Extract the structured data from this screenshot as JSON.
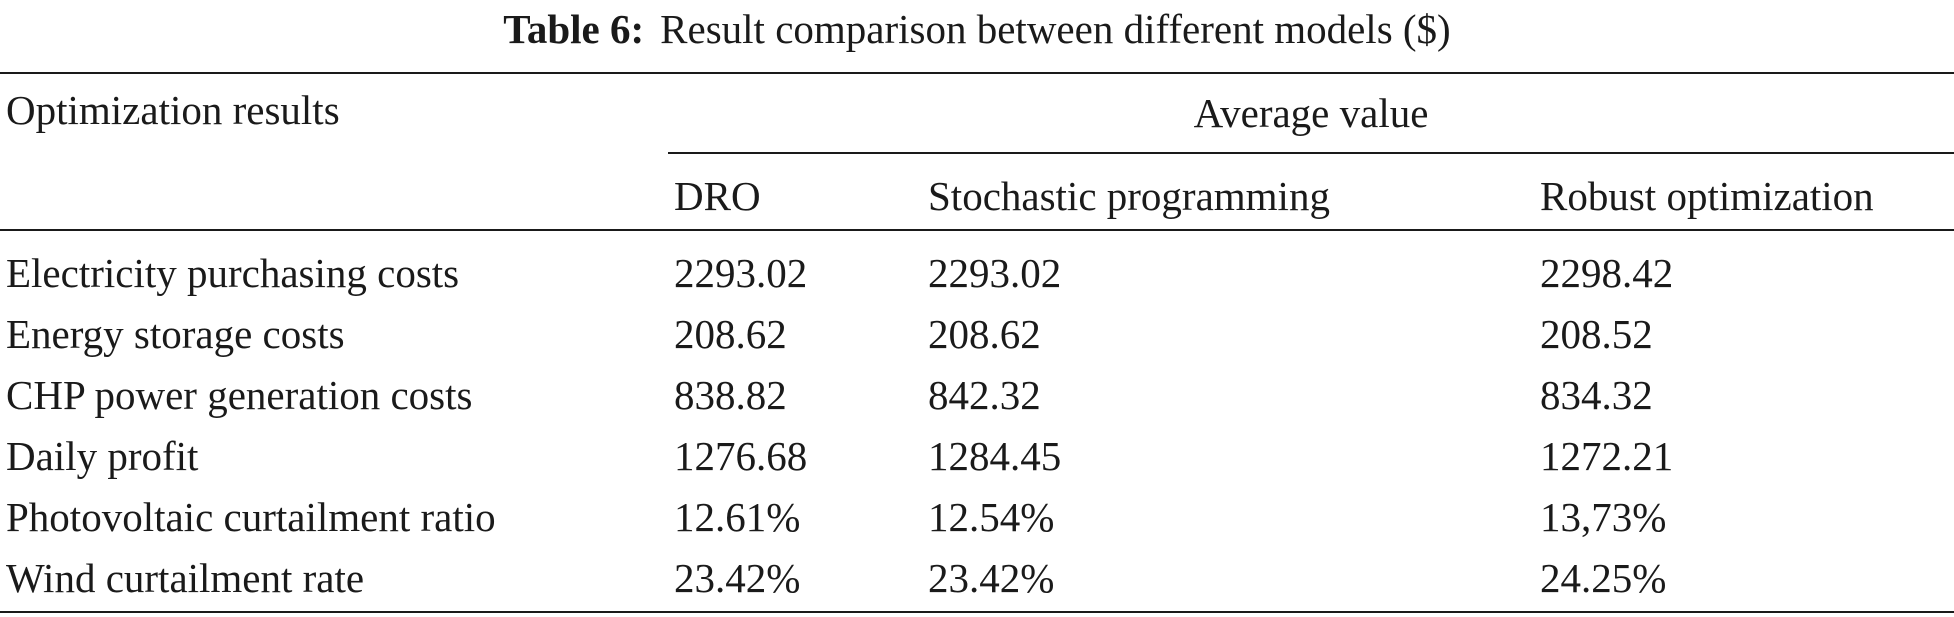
{
  "caption": {
    "label": "Table 6:",
    "text": "Result comparison between different models ($)"
  },
  "header": {
    "row_label": "Optimization results",
    "group_label": "Average value",
    "columns": [
      "DRO",
      "Stochastic programming",
      "Robust optimization"
    ]
  },
  "rows": [
    {
      "label": "Electricity purchasing costs",
      "values": [
        "2293.02",
        "2293.02",
        "2298.42"
      ]
    },
    {
      "label": "Energy storage costs",
      "values": [
        "208.62",
        "208.62",
        "208.52"
      ]
    },
    {
      "label": "CHP power generation costs",
      "values": [
        "838.82",
        "842.32",
        "834.32"
      ]
    },
    {
      "label": "Daily profit",
      "values": [
        "1276.68",
        "1284.45",
        "1272.21"
      ]
    },
    {
      "label": "Photovoltaic curtailment ratio",
      "values": [
        "12.61%",
        "12.54%",
        "13,73%"
      ]
    },
    {
      "label": "Wind curtailment rate",
      "values": [
        "23.42%",
        "23.42%",
        "24.25%"
      ]
    }
  ]
}
